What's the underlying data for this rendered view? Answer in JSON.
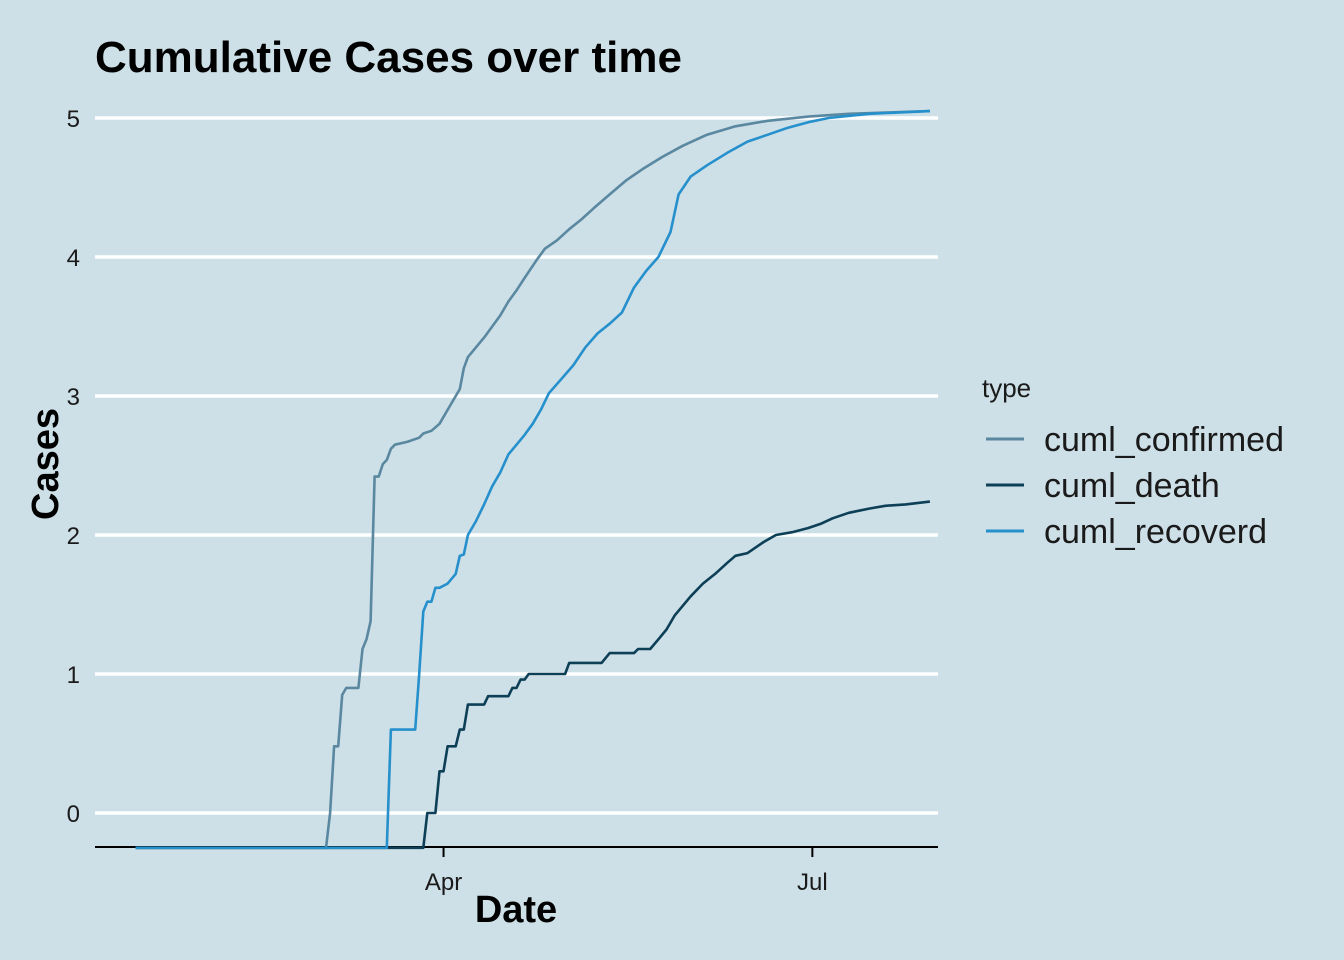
{
  "chart_data": {
    "type": "line",
    "title": "Cumulative Cases over time",
    "xlabel": "Date",
    "ylabel": "Cases",
    "ylim": [
      -0.25,
      5.15
    ],
    "xlim": [
      "2020-01-06",
      "2020-08-01"
    ],
    "x_ticks": [
      {
        "value": "2020-04-01",
        "label": "Apr"
      },
      {
        "value": "2020-07-01",
        "label": "Jul"
      }
    ],
    "y_ticks": [
      {
        "value": 0,
        "label": "0"
      },
      {
        "value": 1,
        "label": "1"
      },
      {
        "value": 2,
        "label": "2"
      },
      {
        "value": 3,
        "label": "3"
      },
      {
        "value": 4,
        "label": "4"
      },
      {
        "value": 5,
        "label": "5"
      }
    ],
    "grid": "horizontal-major",
    "legend": {
      "title": "type",
      "position": "right"
    },
    "series": [
      {
        "name": "cuml_confirmed",
        "color": "#5a88a0",
        "points": [
          [
            "2020-01-16",
            -0.25
          ],
          [
            "2020-03-03",
            -0.25
          ],
          [
            "2020-03-04",
            0.0
          ],
          [
            "2020-03-05",
            0.48
          ],
          [
            "2020-03-06",
            0.48
          ],
          [
            "2020-03-07",
            0.85
          ],
          [
            "2020-03-08",
            0.9
          ],
          [
            "2020-03-11",
            0.9
          ],
          [
            "2020-03-12",
            1.18
          ],
          [
            "2020-03-13",
            1.25
          ],
          [
            "2020-03-14",
            1.38
          ],
          [
            "2020-03-15",
            2.42
          ],
          [
            "2020-03-16",
            2.42
          ],
          [
            "2020-03-17",
            2.51
          ],
          [
            "2020-03-18",
            2.54
          ],
          [
            "2020-03-19",
            2.62
          ],
          [
            "2020-03-20",
            2.65
          ],
          [
            "2020-03-23",
            2.67
          ],
          [
            "2020-03-26",
            2.7
          ],
          [
            "2020-03-27",
            2.73
          ],
          [
            "2020-03-29",
            2.75
          ],
          [
            "2020-03-31",
            2.8
          ],
          [
            "2020-04-02",
            2.9
          ],
          [
            "2020-04-03",
            2.95
          ],
          [
            "2020-04-05",
            3.05
          ],
          [
            "2020-04-06",
            3.2
          ],
          [
            "2020-04-07",
            3.28
          ],
          [
            "2020-04-09",
            3.35
          ],
          [
            "2020-04-11",
            3.42
          ],
          [
            "2020-04-13",
            3.5
          ],
          [
            "2020-04-15",
            3.58
          ],
          [
            "2020-04-17",
            3.68
          ],
          [
            "2020-04-19",
            3.76
          ],
          [
            "2020-04-21",
            3.85
          ],
          [
            "2020-04-24",
            3.98
          ],
          [
            "2020-04-26",
            4.06
          ],
          [
            "2020-04-29",
            4.12
          ],
          [
            "2020-05-02",
            4.2
          ],
          [
            "2020-05-05",
            4.27
          ],
          [
            "2020-05-08",
            4.35
          ],
          [
            "2020-05-12",
            4.45
          ],
          [
            "2020-05-16",
            4.55
          ],
          [
            "2020-05-20",
            4.63
          ],
          [
            "2020-05-25",
            4.72
          ],
          [
            "2020-05-30",
            4.8
          ],
          [
            "2020-06-05",
            4.88
          ],
          [
            "2020-06-12",
            4.94
          ],
          [
            "2020-06-20",
            4.98
          ],
          [
            "2020-06-30",
            5.01
          ],
          [
            "2020-07-10",
            5.03
          ],
          [
            "2020-07-20",
            5.04
          ],
          [
            "2020-07-30",
            5.05
          ]
        ]
      },
      {
        "name": "cuml_death",
        "color": "#0d3f57",
        "points": [
          [
            "2020-01-16",
            -0.25
          ],
          [
            "2020-03-27",
            -0.25
          ],
          [
            "2020-03-28",
            0.0
          ],
          [
            "2020-03-30",
            0.0
          ],
          [
            "2020-03-31",
            0.3
          ],
          [
            "2020-04-01",
            0.3
          ],
          [
            "2020-04-02",
            0.48
          ],
          [
            "2020-04-04",
            0.48
          ],
          [
            "2020-04-05",
            0.6
          ],
          [
            "2020-04-06",
            0.6
          ],
          [
            "2020-04-07",
            0.78
          ],
          [
            "2020-04-11",
            0.78
          ],
          [
            "2020-04-12",
            0.84
          ],
          [
            "2020-04-17",
            0.84
          ],
          [
            "2020-04-18",
            0.9
          ],
          [
            "2020-04-19",
            0.9
          ],
          [
            "2020-04-20",
            0.96
          ],
          [
            "2020-04-21",
            0.96
          ],
          [
            "2020-04-22",
            1.0
          ],
          [
            "2020-05-01",
            1.0
          ],
          [
            "2020-05-02",
            1.08
          ],
          [
            "2020-05-10",
            1.08
          ],
          [
            "2020-05-12",
            1.15
          ],
          [
            "2020-05-18",
            1.15
          ],
          [
            "2020-05-19",
            1.18
          ],
          [
            "2020-05-22",
            1.18
          ],
          [
            "2020-05-24",
            1.25
          ],
          [
            "2020-05-26",
            1.32
          ],
          [
            "2020-05-28",
            1.42
          ],
          [
            "2020-06-01",
            1.56
          ],
          [
            "2020-06-04",
            1.65
          ],
          [
            "2020-06-07",
            1.72
          ],
          [
            "2020-06-10",
            1.8
          ],
          [
            "2020-06-12",
            1.85
          ],
          [
            "2020-06-15",
            1.87
          ],
          [
            "2020-06-19",
            1.95
          ],
          [
            "2020-06-22",
            2.0
          ],
          [
            "2020-06-26",
            2.02
          ],
          [
            "2020-06-30",
            2.05
          ],
          [
            "2020-07-03",
            2.08
          ],
          [
            "2020-07-06",
            2.12
          ],
          [
            "2020-07-10",
            2.16
          ],
          [
            "2020-07-15",
            2.19
          ],
          [
            "2020-07-19",
            2.21
          ],
          [
            "2020-07-24",
            2.22
          ],
          [
            "2020-07-30",
            2.24
          ]
        ]
      },
      {
        "name": "cuml_recoverd",
        "color": "#2690cc",
        "points": [
          [
            "2020-01-16",
            -0.25
          ],
          [
            "2020-03-18",
            -0.25
          ],
          [
            "2020-03-19",
            0.6
          ],
          [
            "2020-03-25",
            0.6
          ],
          [
            "2020-03-26",
            1.0
          ],
          [
            "2020-03-27",
            1.45
          ],
          [
            "2020-03-28",
            1.52
          ],
          [
            "2020-03-29",
            1.52
          ],
          [
            "2020-03-30",
            1.62
          ],
          [
            "2020-03-31",
            1.62
          ],
          [
            "2020-04-02",
            1.65
          ],
          [
            "2020-04-04",
            1.72
          ],
          [
            "2020-04-05",
            1.85
          ],
          [
            "2020-04-06",
            1.86
          ],
          [
            "2020-04-07",
            2.0
          ],
          [
            "2020-04-09",
            2.1
          ],
          [
            "2020-04-11",
            2.22
          ],
          [
            "2020-04-13",
            2.35
          ],
          [
            "2020-04-15",
            2.45
          ],
          [
            "2020-04-17",
            2.58
          ],
          [
            "2020-04-19",
            2.65
          ],
          [
            "2020-04-21",
            2.72
          ],
          [
            "2020-04-23",
            2.8
          ],
          [
            "2020-04-25",
            2.9
          ],
          [
            "2020-04-27",
            3.02
          ],
          [
            "2020-04-30",
            3.12
          ],
          [
            "2020-05-03",
            3.22
          ],
          [
            "2020-05-06",
            3.35
          ],
          [
            "2020-05-09",
            3.45
          ],
          [
            "2020-05-12",
            3.52
          ],
          [
            "2020-05-15",
            3.6
          ],
          [
            "2020-05-18",
            3.78
          ],
          [
            "2020-05-21",
            3.9
          ],
          [
            "2020-05-24",
            4.0
          ],
          [
            "2020-05-27",
            4.18
          ],
          [
            "2020-05-29",
            4.45
          ],
          [
            "2020-06-01",
            4.58
          ],
          [
            "2020-06-05",
            4.66
          ],
          [
            "2020-06-10",
            4.75
          ],
          [
            "2020-06-15",
            4.83
          ],
          [
            "2020-06-20",
            4.88
          ],
          [
            "2020-06-25",
            4.93
          ],
          [
            "2020-06-30",
            4.97
          ],
          [
            "2020-07-05",
            5.0
          ],
          [
            "2020-07-15",
            5.03
          ],
          [
            "2020-07-30",
            5.05
          ]
        ]
      }
    ]
  }
}
